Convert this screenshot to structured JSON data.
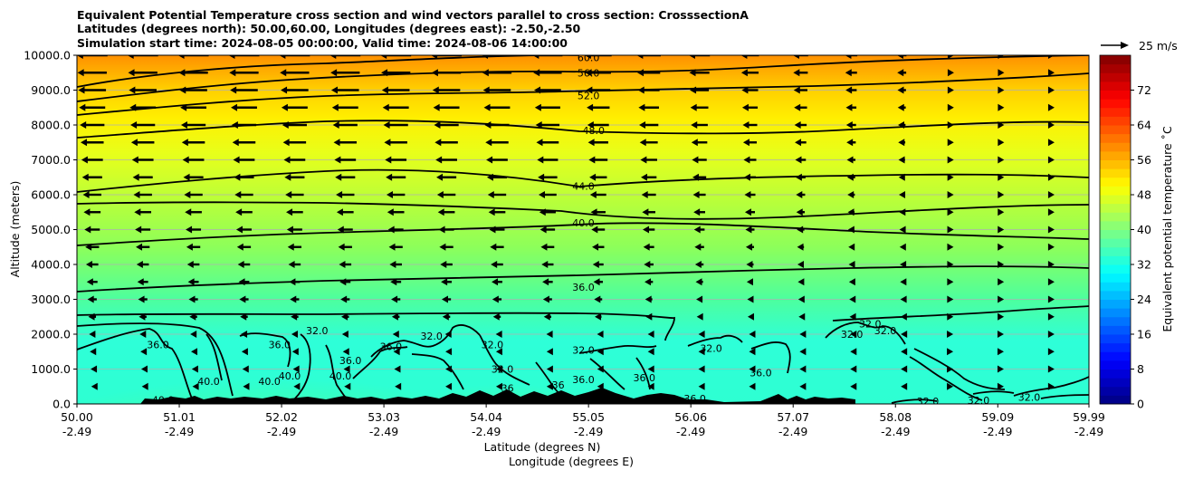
{
  "chart_data": {
    "type": "contourf",
    "title_lines": [
      "Equivalent Potential Temperature cross section and wind vectors parallel to cross section: CrosssectionA",
      "Latitudes (degrees north): 50.00,60.00, Longitudes (degrees east): -2.50,-2.50",
      "Simulation start time: 2024-08-05 00:00:00, Valid time: 2024-08-06 14:00:00"
    ],
    "xlabel_lat": "Latitude (degrees N)",
    "xlabel_lon": "Longitude (degrees E)",
    "ylabel": "Altitude (meters)",
    "colorbar_label": "Equivalent potential temperature ˚C",
    "quiver_key_label": "25 m/s",
    "x_range": [
      50.0,
      59.99
    ],
    "ylim": [
      0,
      10000
    ],
    "x_ticks": [
      {
        "lat": "50.00",
        "lon": "-2.49"
      },
      {
        "lat": "51.01",
        "lon": "-2.49"
      },
      {
        "lat": "52.02",
        "lon": "-2.49"
      },
      {
        "lat": "53.03",
        "lon": "-2.49"
      },
      {
        "lat": "54.04",
        "lon": "-2.49"
      },
      {
        "lat": "55.05",
        "lon": "-2.49"
      },
      {
        "lat": "56.06",
        "lon": "-2.49"
      },
      {
        "lat": "57.07",
        "lon": "-2.49"
      },
      {
        "lat": "58.08",
        "lon": "-2.49"
      },
      {
        "lat": "59.09",
        "lon": "-2.49"
      },
      {
        "lat": "59.99",
        "lon": "-2.49"
      }
    ],
    "y_ticks": [
      "0.0",
      "1000.0",
      "2000.0",
      "3000.0",
      "4000.0",
      "5000.0",
      "6000.0",
      "7000.0",
      "8000.0",
      "9000.0",
      "10000.0"
    ],
    "colorbar_range": [
      0,
      80
    ],
    "colorbar_ticks": [
      "0",
      "8",
      "16",
      "24",
      "32",
      "40",
      "48",
      "56",
      "64",
      "72"
    ],
    "grid_y": true,
    "contour_labels": [
      {
        "text": "60.0",
        "x": 55.05,
        "y": 9930
      },
      {
        "text": "56.0",
        "x": 55.05,
        "y": 9500
      },
      {
        "text": "52.0",
        "x": 55.05,
        "y": 8850
      },
      {
        "text": "48.0",
        "x": 55.1,
        "y": 7850
      },
      {
        "text": "44.0",
        "x": 55.0,
        "y": 6250
      },
      {
        "text": "40.0",
        "x": 55.0,
        "y": 5200
      },
      {
        "text": "36.0",
        "x": 55.0,
        "y": 3350
      },
      {
        "text": "32.0",
        "x": 55.0,
        "y": 1550
      },
      {
        "text": "32.0",
        "x": 53.5,
        "y": 1950
      },
      {
        "text": "36.0",
        "x": 50.8,
        "y": 1700
      },
      {
        "text": "32.0",
        "x": 52.37,
        "y": 2100
      },
      {
        "text": "36.0",
        "x": 52.0,
        "y": 1700
      },
      {
        "text": "40.0",
        "x": 51.3,
        "y": 650
      },
      {
        "text": "40.0",
        "x": 51.9,
        "y": 650
      },
      {
        "text": "40.0",
        "x": 52.1,
        "y": 800
      },
      {
        "text": "40.0",
        "x": 52.6,
        "y": 800
      },
      {
        "text": "36.0",
        "x": 52.7,
        "y": 1250
      },
      {
        "text": "36.0",
        "x": 53.1,
        "y": 1650
      },
      {
        "text": "32.0",
        "x": 54.1,
        "y": 1700
      },
      {
        "text": "32.0",
        "x": 54.2,
        "y": 1000
      },
      {
        "text": "36",
        "x": 54.25,
        "y": 450
      },
      {
        "text": "36",
        "x": 54.75,
        "y": 550
      },
      {
        "text": "36.0",
        "x": 55.0,
        "y": 700
      },
      {
        "text": "36.0",
        "x": 55.6,
        "y": 750
      },
      {
        "text": "36.0",
        "x": 56.1,
        "y": 150
      },
      {
        "text": "32.0",
        "x": 56.26,
        "y": 1600
      },
      {
        "text": "36.0",
        "x": 56.75,
        "y": 900
      },
      {
        "text": "32.0",
        "x": 57.65,
        "y": 2000
      },
      {
        "text": "32.0",
        "x": 57.83,
        "y": 2300
      },
      {
        "text": "32.0",
        "x": 57.98,
        "y": 2100
      },
      {
        "text": "32.0",
        "x": 58.4,
        "y": 80
      },
      {
        "text": "32.0",
        "x": 58.9,
        "y": 100
      },
      {
        "text": "32.0",
        "x": 59.4,
        "y": 200
      },
      {
        "text": "40.0",
        "x": 50.85,
        "y": 120
      }
    ]
  }
}
